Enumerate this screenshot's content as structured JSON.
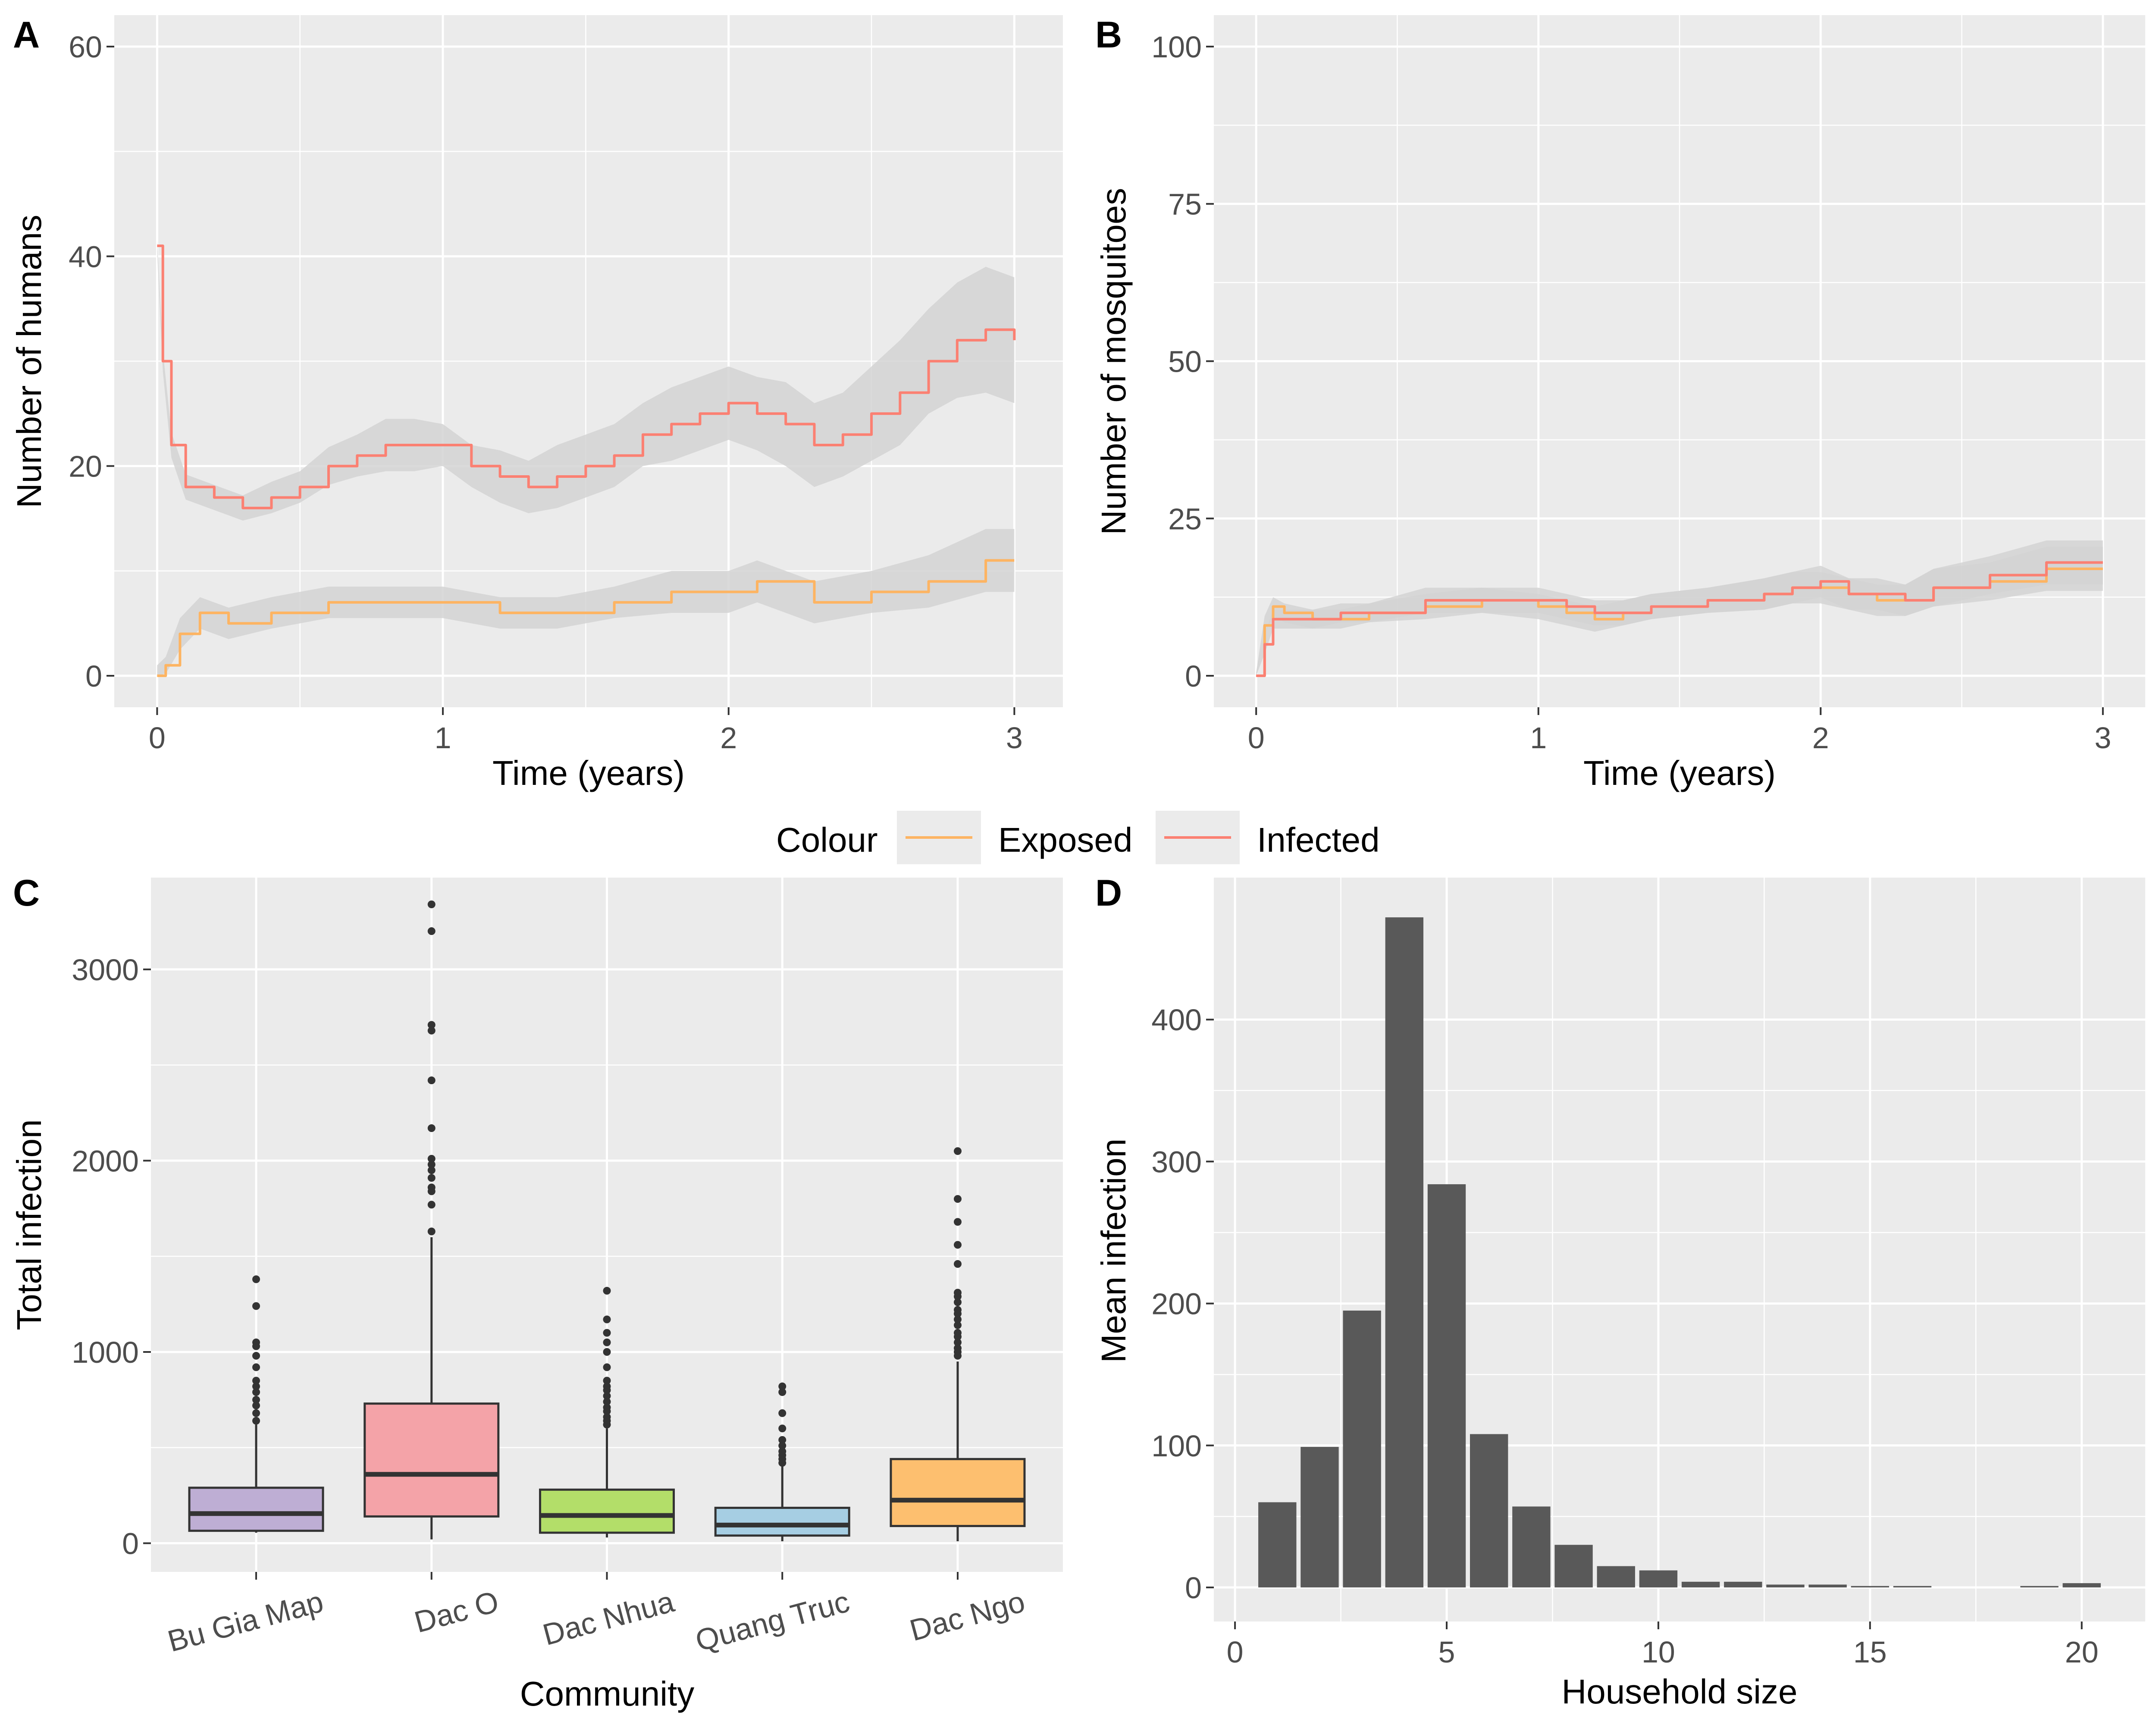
{
  "figure": {
    "panel_tags": [
      "A",
      "B",
      "C",
      "D"
    ],
    "legend": {
      "title": "Colour",
      "items": [
        {
          "label": "Exposed",
          "color": "#FDB462"
        },
        {
          "label": "Infected",
          "color": "#FB8072"
        }
      ]
    }
  },
  "chart_data": [
    {
      "panel": "A",
      "type": "line",
      "xlabel": "Time (years)",
      "ylabel": "Number of humans",
      "xlim": [
        -0.15,
        3.17
      ],
      "ylim": [
        -3,
        63
      ],
      "xticks": [
        0,
        1,
        2,
        3
      ],
      "yticks": [
        0,
        20,
        40,
        60
      ],
      "band_color": "#d3d3d3",
      "series": [
        {
          "name": "Exposed",
          "color": "#FDB462",
          "x": [
            0,
            0.03,
            0.08,
            0.15,
            0.25,
            0.4,
            0.6,
            0.8,
            1.0,
            1.2,
            1.4,
            1.6,
            1.8,
            2.0,
            2.1,
            2.3,
            2.5,
            2.7,
            2.9,
            3.0
          ],
          "y": [
            0,
            1,
            4,
            6,
            5,
            6,
            7,
            7,
            7,
            6,
            6,
            7,
            8,
            8,
            9,
            7,
            8,
            9,
            11,
            11
          ],
          "band": [
            1,
            0.8,
            1.5,
            1.5,
            1.5,
            1.5,
            1.5,
            1.5,
            1.5,
            1.5,
            1.5,
            1.5,
            2,
            2,
            2,
            2,
            2,
            2.5,
            3,
            3
          ]
        },
        {
          "name": "Infected",
          "color": "#FB8072",
          "x": [
            0,
            0.02,
            0.05,
            0.1,
            0.2,
            0.3,
            0.4,
            0.5,
            0.6,
            0.7,
            0.8,
            0.9,
            1.0,
            1.1,
            1.2,
            1.3,
            1.4,
            1.5,
            1.6,
            1.7,
            1.8,
            1.9,
            2.0,
            2.1,
            2.2,
            2.3,
            2.4,
            2.5,
            2.6,
            2.7,
            2.8,
            2.9,
            3.0
          ],
          "y": [
            41,
            30,
            22,
            18,
            17,
            16,
            17,
            18,
            20,
            21,
            22,
            22,
            22,
            20,
            19,
            18,
            19,
            20,
            21,
            23,
            24,
            25,
            26,
            25,
            24,
            22,
            23,
            25,
            27,
            30,
            32,
            33,
            32
          ],
          "band": [
            0.5,
            1,
            1.2,
            1.2,
            1.2,
            1.2,
            1.5,
            1.5,
            1.8,
            2,
            2.5,
            2.5,
            2,
            2,
            2.5,
            2.5,
            3,
            3,
            3,
            3,
            3.5,
            3.5,
            3.5,
            3.5,
            4,
            4,
            4,
            4.5,
            5,
            5,
            5.5,
            6,
            6
          ]
        }
      ]
    },
    {
      "panel": "B",
      "type": "line",
      "xlabel": "Time (years)",
      "ylabel": "Number of mosquitoes",
      "xlim": [
        -0.15,
        3.15
      ],
      "ylim": [
        -5,
        105
      ],
      "xticks": [
        0,
        1,
        2,
        3
      ],
      "yticks": [
        0,
        25,
        50,
        75,
        100
      ],
      "band_color": "#d3d3d3",
      "series": [
        {
          "name": "Exposed",
          "color": "#FDB462",
          "x": [
            0,
            0.03,
            0.06,
            0.1,
            0.2,
            0.3,
            0.4,
            0.6,
            0.8,
            1.0,
            1.1,
            1.2,
            1.3,
            1.4,
            1.6,
            1.8,
            1.9,
            2.0,
            2.1,
            2.2,
            2.3,
            2.4,
            2.6,
            2.8,
            2.9,
            3.0
          ],
          "y": [
            0,
            8,
            11,
            10,
            9,
            9,
            10,
            11,
            12,
            11,
            10,
            9,
            10,
            11,
            12,
            13,
            14,
            14,
            13,
            12,
            12,
            14,
            15,
            17,
            17,
            17
          ],
          "band": [
            0.5,
            1.5,
            1.5,
            1.5,
            1.5,
            1.5,
            1.5,
            2,
            2,
            2,
            2,
            2,
            2,
            2,
            2,
            2.5,
            2.5,
            2.5,
            2.5,
            2.5,
            2.5,
            3,
            3,
            3.5,
            3.5,
            3.5
          ]
        },
        {
          "name": "Infected",
          "color": "#FB8072",
          "x": [
            0,
            0.03,
            0.06,
            0.1,
            0.2,
            0.3,
            0.4,
            0.6,
            0.8,
            1.0,
            1.1,
            1.2,
            1.3,
            1.4,
            1.6,
            1.8,
            1.9,
            2.0,
            2.1,
            2.2,
            2.3,
            2.4,
            2.6,
            2.8,
            2.9,
            3.0
          ],
          "y": [
            0,
            5,
            9,
            9,
            9,
            10,
            10,
            12,
            12,
            12,
            11,
            10,
            10,
            11,
            12,
            13,
            14,
            15,
            13,
            13,
            12,
            14,
            16,
            18,
            18,
            18
          ],
          "band": [
            0.5,
            1.5,
            1.5,
            1.5,
            1.5,
            1.5,
            1.5,
            2,
            2,
            2,
            2,
            2,
            2,
            2,
            2,
            2.5,
            2.5,
            2.5,
            2.5,
            2.5,
            2.5,
            3,
            3,
            3.5,
            3.5,
            3.5
          ]
        }
      ]
    },
    {
      "panel": "C",
      "type": "box",
      "xlabel": "Community",
      "ylabel": "Total infection",
      "ylim": [
        -150,
        3480
      ],
      "yticks": [
        0,
        1000,
        2000,
        3000
      ],
      "categories": [
        "Bu Gia Map",
        "Dac O",
        "Dac Nhua",
        "Quang Truc",
        "Dac Ngo"
      ],
      "colors": [
        "#BEAED4",
        "#F4A3A8",
        "#B3DE69",
        "#A6CEE3",
        "#FDBF6F"
      ],
      "boxes": [
        {
          "min": 55,
          "q1": 65,
          "median": 155,
          "q3": 290,
          "max": 620,
          "outliers": [
            640,
            680,
            720,
            750,
            790,
            820,
            850,
            920,
            980,
            1030,
            1050,
            1240,
            1380
          ]
        },
        {
          "min": 20,
          "q1": 140,
          "median": 360,
          "q3": 730,
          "max": 1600,
          "outliers": [
            1630,
            1770,
            1840,
            1860,
            1910,
            1950,
            1980,
            2010,
            2170,
            2420,
            2680,
            2710,
            3200,
            3340
          ]
        },
        {
          "min": 30,
          "q1": 55,
          "median": 145,
          "q3": 280,
          "max": 600,
          "outliers": [
            620,
            640,
            660,
            690,
            710,
            740,
            770,
            800,
            820,
            850,
            920,
            1000,
            1050,
            1100,
            1170,
            1320
          ]
        },
        {
          "min": 10,
          "q1": 40,
          "median": 95,
          "q3": 185,
          "max": 400,
          "outliers": [
            420,
            440,
            460,
            480,
            510,
            540,
            600,
            680,
            790,
            820
          ]
        },
        {
          "min": 10,
          "q1": 90,
          "median": 225,
          "q3": 440,
          "max": 950,
          "outliers": [
            980,
            1000,
            1020,
            1050,
            1080,
            1100,
            1140,
            1170,
            1200,
            1220,
            1260,
            1290,
            1310,
            1460,
            1560,
            1680,
            1800,
            2050
          ]
        }
      ]
    },
    {
      "panel": "D",
      "type": "bar",
      "xlabel": "Household size",
      "ylabel": "Mean infection",
      "xlim": [
        -0.5,
        21.5
      ],
      "ylim": [
        -24,
        500
      ],
      "xticks": [
        0,
        5,
        10,
        15,
        20
      ],
      "yticks": [
        0,
        100,
        200,
        300,
        400
      ],
      "bar_color": "#595959",
      "x": [
        1,
        2,
        3,
        4,
        5,
        6,
        7,
        8,
        9,
        10,
        11,
        12,
        13,
        14,
        15,
        16,
        19,
        20
      ],
      "values": [
        60,
        99,
        195,
        472,
        284,
        108,
        57,
        30,
        15,
        12,
        4,
        4,
        2,
        2,
        1,
        1,
        1,
        3
      ]
    }
  ]
}
